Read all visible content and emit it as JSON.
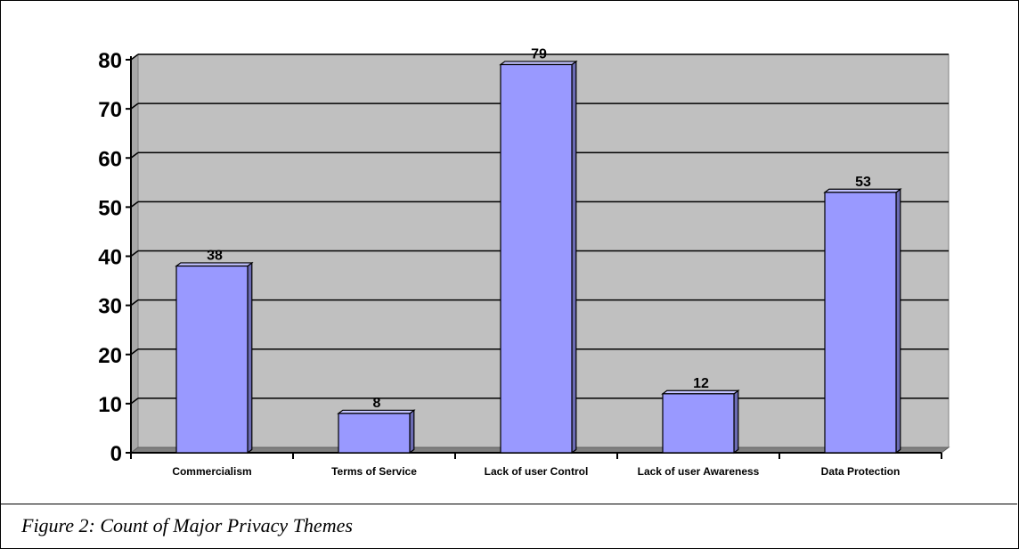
{
  "chart_data": {
    "type": "bar",
    "categories": [
      "Commercialism",
      "Terms of Service",
      "Lack of user Control",
      "Lack of user Awareness",
      "Data Protection"
    ],
    "values": [
      38,
      8,
      79,
      12,
      53
    ],
    "title": "",
    "xlabel": "",
    "ylabel": "",
    "ylim": [
      0,
      80
    ],
    "yticks": [
      0,
      10,
      20,
      30,
      40,
      50,
      60,
      70,
      80
    ],
    "grid": true,
    "legend": "none",
    "data_labels": true,
    "colors": {
      "bar_face": "#9999ff",
      "bar_side": "#6b6bb3",
      "bar_top": "#c2c2ff",
      "plot_background": "#c0c0c0",
      "plot_floor": "#808080",
      "gridline": "#000000"
    }
  },
  "caption": "Figure 2: Count of Major Privacy Themes"
}
